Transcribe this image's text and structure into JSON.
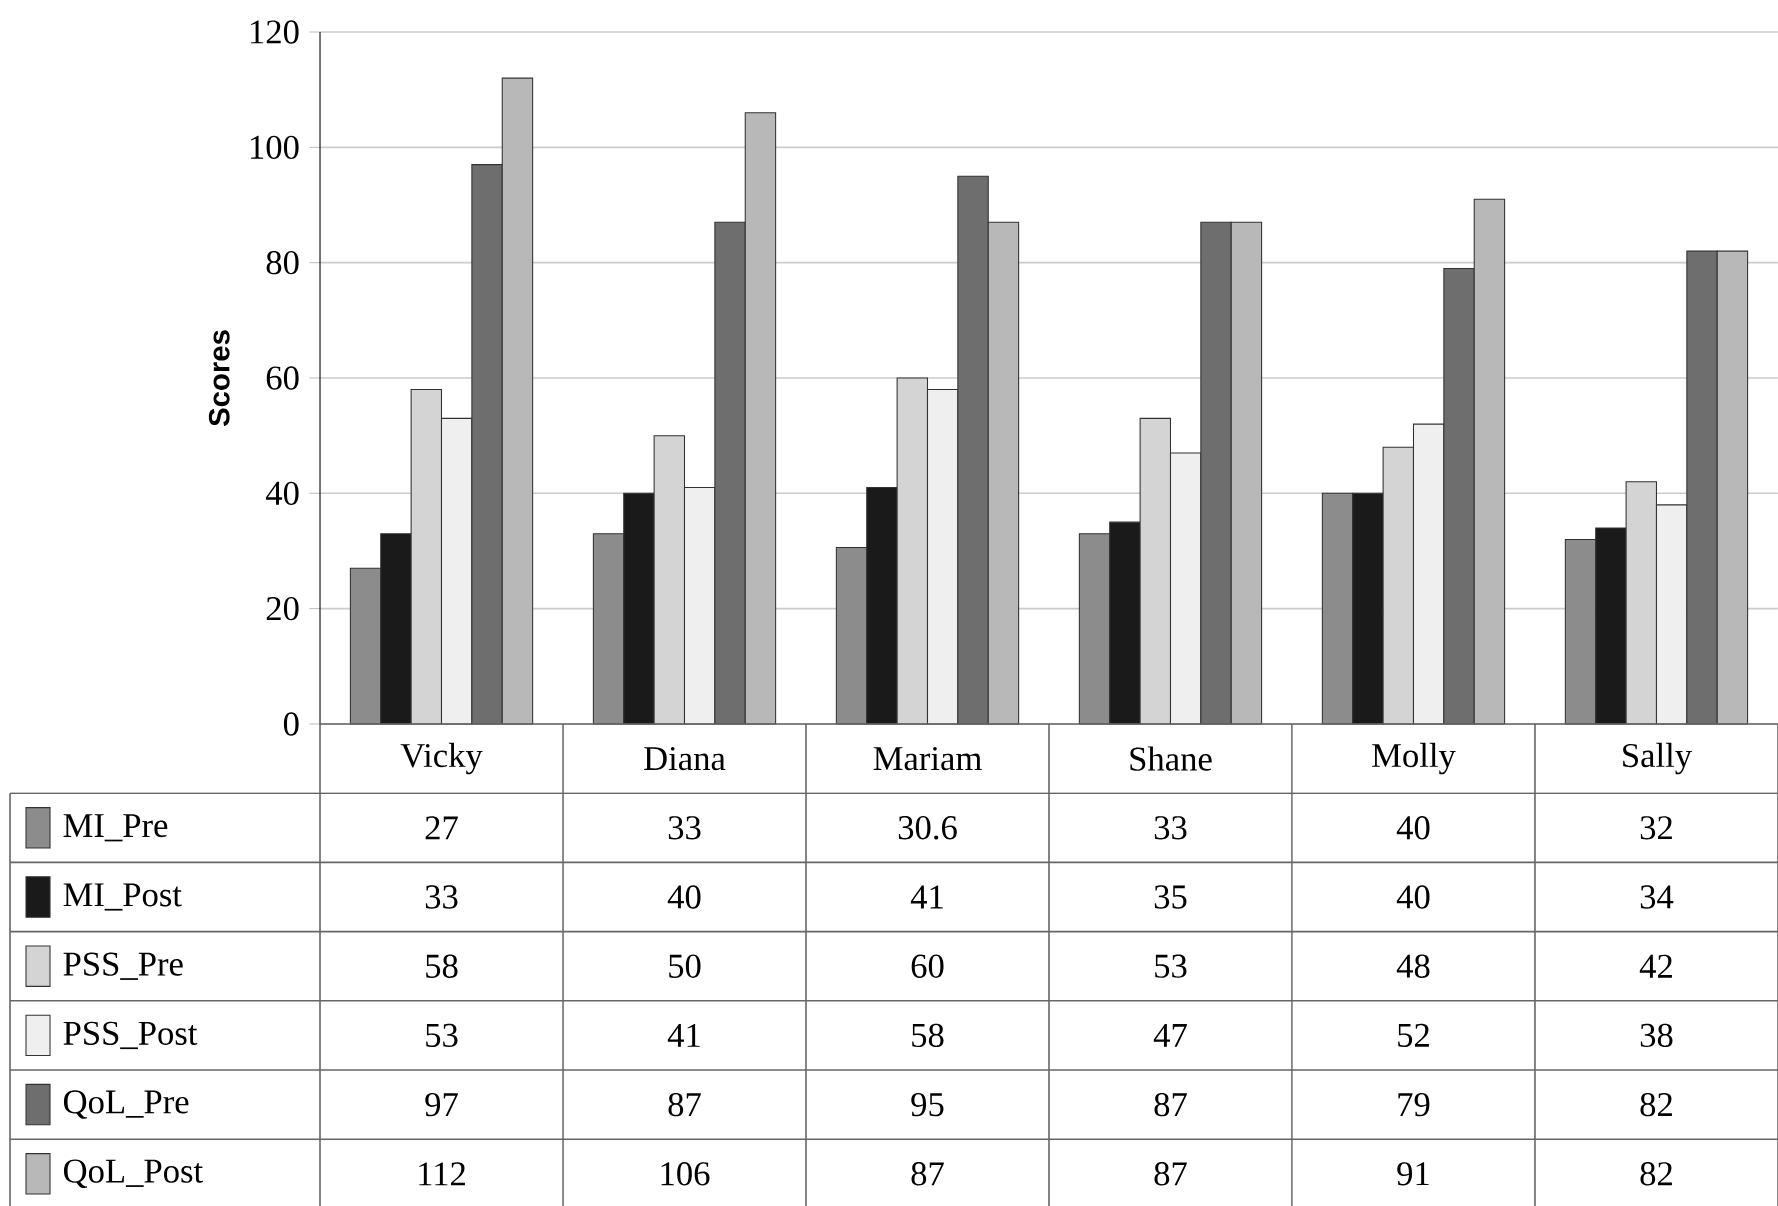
{
  "chart_data": {
    "type": "bar",
    "ylabel": "Scores",
    "categories": [
      "Vicky",
      "Diana",
      "Mariam",
      "Shane",
      "Molly",
      "Sally"
    ],
    "series": [
      {
        "name": "MI_Pre",
        "color": "#8c8c8c",
        "values": [
          27,
          33,
          30.6,
          33,
          40,
          32
        ]
      },
      {
        "name": "MI_Post",
        "color": "#1a1a1a",
        "values": [
          33,
          40,
          41,
          35,
          40,
          34
        ]
      },
      {
        "name": "PSS_Pre",
        "color": "#d4d4d4",
        "values": [
          58,
          50,
          60,
          53,
          48,
          42
        ]
      },
      {
        "name": "PSS_Post",
        "color": "#efefef",
        "values": [
          53,
          41,
          58,
          47,
          52,
          38
        ]
      },
      {
        "name": "QoL_Pre",
        "color": "#6e6e6e",
        "values": [
          97,
          87,
          95,
          87,
          79,
          82
        ]
      },
      {
        "name": "QoL_Post",
        "color": "#b8b8b8",
        "values": [
          112,
          106,
          87,
          87,
          91,
          82
        ]
      }
    ],
    "ylim": [
      0,
      120
    ],
    "yticks": [
      0,
      20,
      40,
      60,
      80,
      100,
      120
    ],
    "grid": "y",
    "legend": "bottom",
    "data_labels": true
  }
}
